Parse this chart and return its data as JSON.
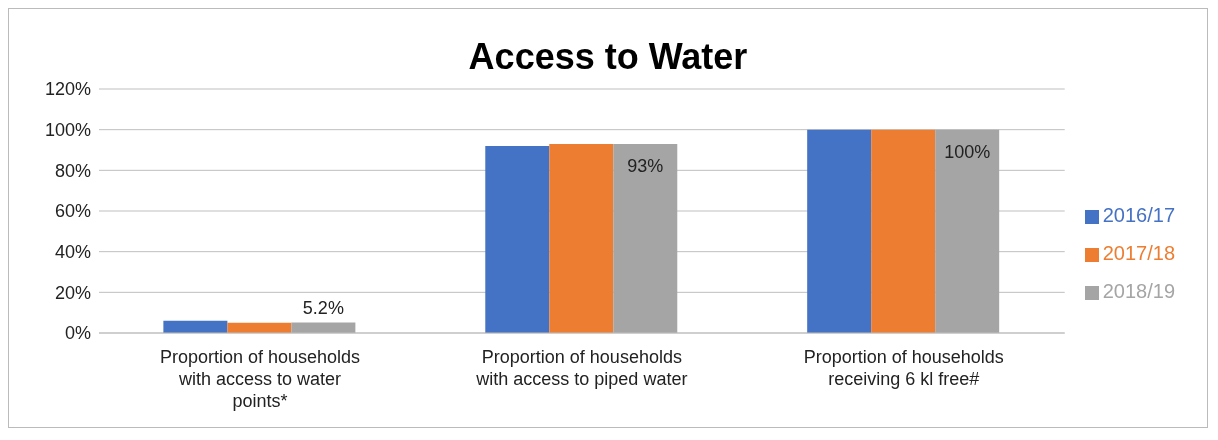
{
  "chart_data": {
    "type": "bar",
    "title": "Access to Water",
    "categories": [
      "Proportion of households with access to water points*",
      "Proportion of households with access to piped water",
      "Proportion of households receiving 6 kl free#"
    ],
    "series": [
      {
        "name": "2016/17",
        "color": "#4472c4",
        "values": [
          6,
          92,
          100
        ]
      },
      {
        "name": "2017/18",
        "color": "#ed7d31",
        "values": [
          5,
          93,
          100
        ]
      },
      {
        "name": "2018/19",
        "color": "#a5a5a5",
        "values": [
          5.2,
          93,
          100
        ],
        "value_labels": [
          "5.2%",
          "93%",
          "100%"
        ]
      }
    ],
    "ylim": [
      0,
      120
    ],
    "yticks": [
      {
        "value": 0,
        "label": "0%"
      },
      {
        "value": 20,
        "label": "20%"
      },
      {
        "value": 40,
        "label": "40%"
      },
      {
        "value": 60,
        "label": "60%"
      },
      {
        "value": 80,
        "label": "80%"
      },
      {
        "value": 100,
        "label": "100%"
      },
      {
        "value": 120,
        "label": "120%"
      }
    ],
    "grid": "y",
    "legend": "right"
  }
}
